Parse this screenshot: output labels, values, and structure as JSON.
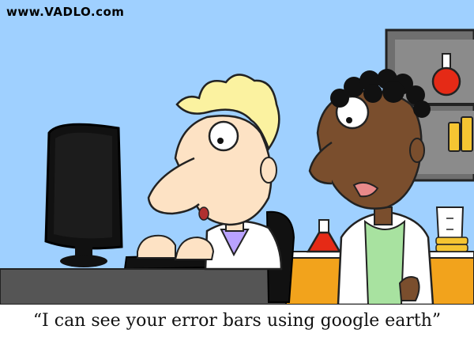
{
  "watermark": "www.VADLO.com",
  "caption": "“I can see your error bars using google earth”",
  "colors": {
    "wall": "#9fd0ff",
    "skin_light": "#fde2c4",
    "skin_dark": "#7a4e2d",
    "hair_blond": "#fbf2a0",
    "hair_dark": "#111111",
    "sweater": "#b9a2ff",
    "undershirt": "#a8e2a0",
    "lab_coat": "#ffffff",
    "bench": "#f2a31c",
    "flask_red": "#e52a16",
    "monitor": "#111111",
    "desk": "#555555"
  }
}
